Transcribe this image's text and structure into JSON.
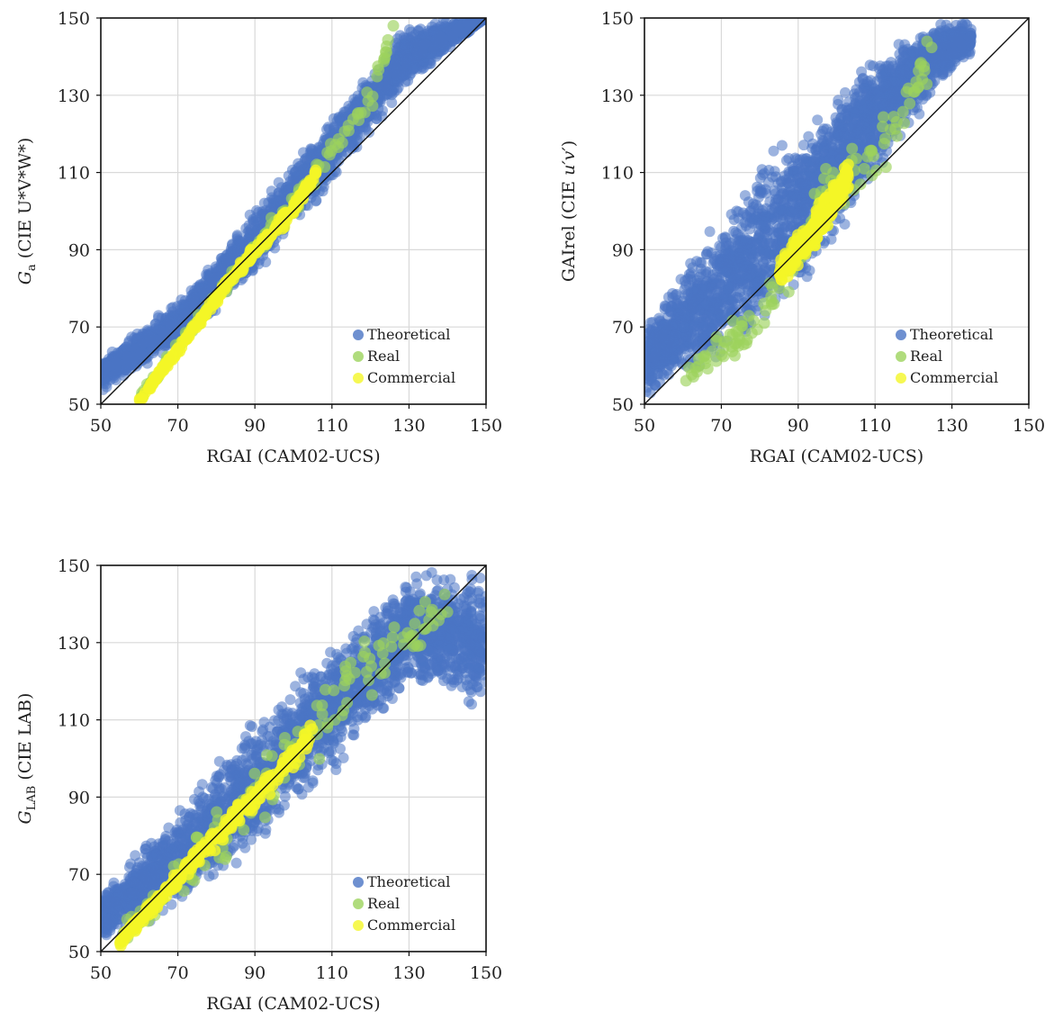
{
  "colors": {
    "theoretical": "#4a74c4",
    "real": "#9cd35c",
    "commercial": "#f4f627",
    "grid": "#d9d9d9",
    "identity_line": "#111111"
  },
  "chart_data": [
    {
      "type": "scatter",
      "xlabel": "RGAI (CAM02-UCS)",
      "ylabel": {
        "main": "G",
        "sub": "a",
        "rest": " (CIE U*V*W*)"
      },
      "xlim": [
        50,
        150
      ],
      "ylim": [
        50,
        150
      ],
      "xticks": [
        "50",
        "70",
        "90",
        "110",
        "130",
        "150"
      ],
      "yticks": [
        "50",
        "70",
        "90",
        "110",
        "130",
        "150"
      ],
      "grid": true,
      "identity_line": true,
      "legend_position": "bottom-right",
      "series": [
        {
          "name": "Theoretical",
          "color_key": "theoretical",
          "band": [
            [
              50,
              50,
              3,
              12
            ],
            [
              70,
              67,
              -2,
              10
            ],
            [
              90,
              90,
              -8,
              12
            ],
            [
              110,
              112,
              -6,
              14
            ],
            [
              130,
              140,
              -8,
              10
            ],
            [
              150,
              150,
              0,
              0
            ]
          ]
        },
        {
          "name": "Real",
          "color_key": "real",
          "band": [
            [
              60,
              51,
              -1,
              2
            ],
            [
              80,
              78,
              -3,
              3
            ],
            [
              100,
              102,
              -4,
              4
            ],
            [
              120,
              128,
              -4,
              6
            ],
            [
              126,
              148,
              -2,
              2
            ]
          ]
        },
        {
          "name": "Commercial",
          "color_key": "commercial",
          "band": [
            [
              60,
              51,
              -1,
              1
            ],
            [
              85,
              84,
              -2,
              2
            ],
            [
              100,
              100,
              -2,
              3
            ],
            [
              106,
              110,
              -1,
              2
            ]
          ]
        }
      ]
    },
    {
      "type": "scatter",
      "xlabel": "RGAI (CAM02-UCS)",
      "ylabel": {
        "main": "GAIrel (CIE ",
        "ital": "u′v′",
        "rest": ")"
      },
      "xlim": [
        50,
        150
      ],
      "ylim": [
        50,
        150
      ],
      "xticks": [
        "50",
        "70",
        "90",
        "110",
        "130",
        "150"
      ],
      "yticks": [
        "50",
        "70",
        "90",
        "110",
        "130",
        "150"
      ],
      "grid": true,
      "identity_line": true,
      "legend_position": "bottom-right",
      "series": [
        {
          "name": "Theoretical",
          "color_key": "theoretical",
          "band": [
            [
              50,
              52,
              -2,
              20
            ],
            [
              70,
              72,
              -12,
              30
            ],
            [
              90,
              95,
              -20,
              30
            ],
            [
              110,
              120,
              -15,
              25
            ],
            [
              125,
              140,
              -10,
              10
            ],
            [
              135,
              145,
              -5,
              5
            ]
          ]
        },
        {
          "name": "Real",
          "color_key": "real",
          "band": [
            [
              60,
              56,
              -4,
              4
            ],
            [
              80,
              72,
              -8,
              10
            ],
            [
              95,
              98,
              -12,
              14
            ],
            [
              110,
              116,
              -10,
              12
            ],
            [
              125,
              140,
              -8,
              8
            ]
          ]
        },
        {
          "name": "Commercial",
          "color_key": "commercial",
          "band": [
            [
              85,
              84,
              -4,
              4
            ],
            [
              95,
              96,
              -6,
              6
            ],
            [
              103,
              108,
              -4,
              6
            ]
          ]
        }
      ]
    },
    {
      "type": "scatter",
      "xlabel": "RGAI (CAM02-UCS)",
      "ylabel": {
        "main": "G",
        "sub": "LAB",
        "rest": " (CIE LAB)"
      },
      "xlim": [
        50,
        150
      ],
      "ylim": [
        50,
        150
      ],
      "xticks": [
        "50",
        "70",
        "90",
        "110",
        "130",
        "150"
      ],
      "yticks": [
        "50",
        "70",
        "90",
        "110",
        "130",
        "150"
      ],
      "grid": true,
      "identity_line": true,
      "legend_position": "bottom-right",
      "series": [
        {
          "name": "Theoretical",
          "color_key": "theoretical",
          "band": [
            [
              50,
              55,
              -4,
              12
            ],
            [
              70,
              72,
              -12,
              16
            ],
            [
              90,
              92,
              -18,
              20
            ],
            [
              110,
              112,
              -18,
              20
            ],
            [
              130,
              138,
              -22,
              12
            ],
            [
              150,
              145,
              -35,
              5
            ]
          ]
        },
        {
          "name": "Real",
          "color_key": "real",
          "band": [
            [
              55,
              54,
              -3,
              4
            ],
            [
              75,
              72,
              -10,
              10
            ],
            [
              95,
              96,
              -14,
              16
            ],
            [
              115,
              118,
              -10,
              14
            ],
            [
              140,
              140,
              -8,
              8
            ]
          ]
        },
        {
          "name": "Commercial",
          "color_key": "commercial",
          "band": [
            [
              55,
              52,
              -1,
              2
            ],
            [
              80,
              80,
              -4,
              4
            ],
            [
              95,
              95,
              -4,
              4
            ],
            [
              105,
              106,
              -3,
              4
            ]
          ]
        }
      ]
    }
  ]
}
